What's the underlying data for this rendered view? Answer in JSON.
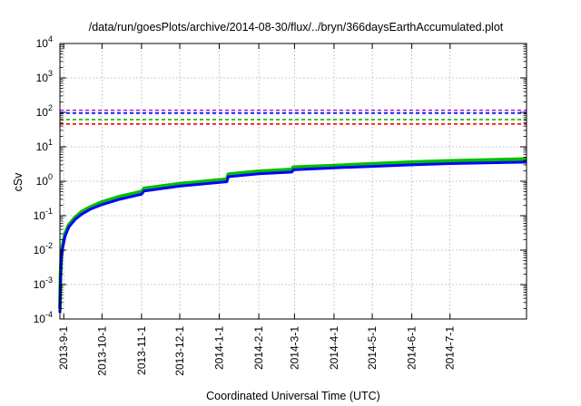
{
  "chart_data": {
    "type": "line",
    "title": "/data/run/goesPlots/archive/2014-08-30/flux/../bryn/366daysEarthAccumulated.plot",
    "xlabel": "Coordinated Universal Time (UTC)",
    "ylabel": "cSv",
    "y_scale": "log",
    "ylim": [
      0.0001,
      10000
    ],
    "xlim": [
      "2013-08-29",
      "2014-08-30"
    ],
    "grid": true,
    "x_ticks": [
      {
        "date": "2013-09-01",
        "label": "2013-9-1"
      },
      {
        "date": "2013-10-01",
        "label": "2013-10-1"
      },
      {
        "date": "2013-11-01",
        "label": "2013-11-1"
      },
      {
        "date": "2013-12-01",
        "label": "2013-12-1"
      },
      {
        "date": "2014-01-01",
        "label": "2014-1-1"
      },
      {
        "date": "2014-02-01",
        "label": "2014-2-1"
      },
      {
        "date": "2014-03-01",
        "label": "2014-3-1"
      },
      {
        "date": "2014-04-01",
        "label": "2014-4-1"
      },
      {
        "date": "2014-05-01",
        "label": "2014-5-1"
      },
      {
        "date": "2014-06-01",
        "label": "2014-6-1"
      },
      {
        "date": "2014-07-01",
        "label": "2014-7-1"
      }
    ],
    "y_ticks": [
      {
        "value": 0.0001,
        "base": "10",
        "exp": "-4"
      },
      {
        "value": 0.001,
        "base": "10",
        "exp": "-3"
      },
      {
        "value": 0.01,
        "base": "10",
        "exp": "-2"
      },
      {
        "value": 0.1,
        "base": "10",
        "exp": "-1"
      },
      {
        "value": 1,
        "base": "10",
        "exp": "0"
      },
      {
        "value": 10,
        "base": "10",
        "exp": "1"
      },
      {
        "value": 100,
        "base": "10",
        "exp": "2"
      },
      {
        "value": 1000,
        "base": "10",
        "exp": "3"
      },
      {
        "value": 10000,
        "base": "10",
        "exp": "4"
      }
    ],
    "reference_lines": [
      {
        "value": 115,
        "color": "#a020f0",
        "style": "dashed"
      },
      {
        "value": 95,
        "color": "#0000ff",
        "style": "dashed"
      },
      {
        "value": 62,
        "color": "#00c000",
        "style": "dashed"
      },
      {
        "value": 46,
        "color": "#ff0000",
        "style": "dashed"
      }
    ],
    "series": [
      {
        "color": "#00c000",
        "points": [
          [
            "2013-08-29",
            0.0002
          ],
          [
            "2013-08-29T12:00",
            0.002
          ],
          [
            "2013-08-30",
            0.006
          ],
          [
            "2013-08-31",
            0.013
          ],
          [
            "2013-09-02",
            0.03
          ],
          [
            "2013-09-05",
            0.055
          ],
          [
            "2013-09-10",
            0.09
          ],
          [
            "2013-09-15",
            0.13
          ],
          [
            "2013-09-22",
            0.18
          ],
          [
            "2013-10-01",
            0.25
          ],
          [
            "2013-10-15",
            0.36
          ],
          [
            "2013-11-01",
            0.5
          ],
          [
            "2013-11-03",
            0.62
          ],
          [
            "2013-12-01",
            0.85
          ],
          [
            "2014-01-07",
            1.15
          ],
          [
            "2014-01-08",
            1.6
          ],
          [
            "2014-02-01",
            1.95
          ],
          [
            "2014-02-27",
            2.2
          ],
          [
            "2014-02-28",
            2.55
          ],
          [
            "2014-04-01",
            2.85
          ],
          [
            "2014-05-01",
            3.2
          ],
          [
            "2014-06-01",
            3.6
          ],
          [
            "2014-07-01",
            3.9
          ],
          [
            "2014-08-30",
            4.4
          ]
        ]
      },
      {
        "color": "#0000ff",
        "points": [
          [
            "2013-08-29",
            0.00015
          ],
          [
            "2013-08-29T12:00",
            0.0015
          ],
          [
            "2013-08-30",
            0.005
          ],
          [
            "2013-08-31",
            0.011
          ],
          [
            "2013-09-02",
            0.025
          ],
          [
            "2013-09-05",
            0.047
          ],
          [
            "2013-09-10",
            0.078
          ],
          [
            "2013-09-15",
            0.11
          ],
          [
            "2013-09-22",
            0.155
          ],
          [
            "2013-10-01",
            0.21
          ],
          [
            "2013-10-15",
            0.3
          ],
          [
            "2013-11-01",
            0.42
          ],
          [
            "2013-11-03",
            0.52
          ],
          [
            "2013-12-01",
            0.72
          ],
          [
            "2014-01-07",
            0.97
          ],
          [
            "2014-01-08",
            1.35
          ],
          [
            "2014-02-01",
            1.65
          ],
          [
            "2014-02-27",
            1.85
          ],
          [
            "2014-02-28",
            2.15
          ],
          [
            "2014-04-01",
            2.45
          ],
          [
            "2014-05-01",
            2.7
          ],
          [
            "2014-06-01",
            3.0
          ],
          [
            "2014-07-01",
            3.25
          ],
          [
            "2014-08-30",
            3.6
          ]
        ]
      }
    ]
  }
}
